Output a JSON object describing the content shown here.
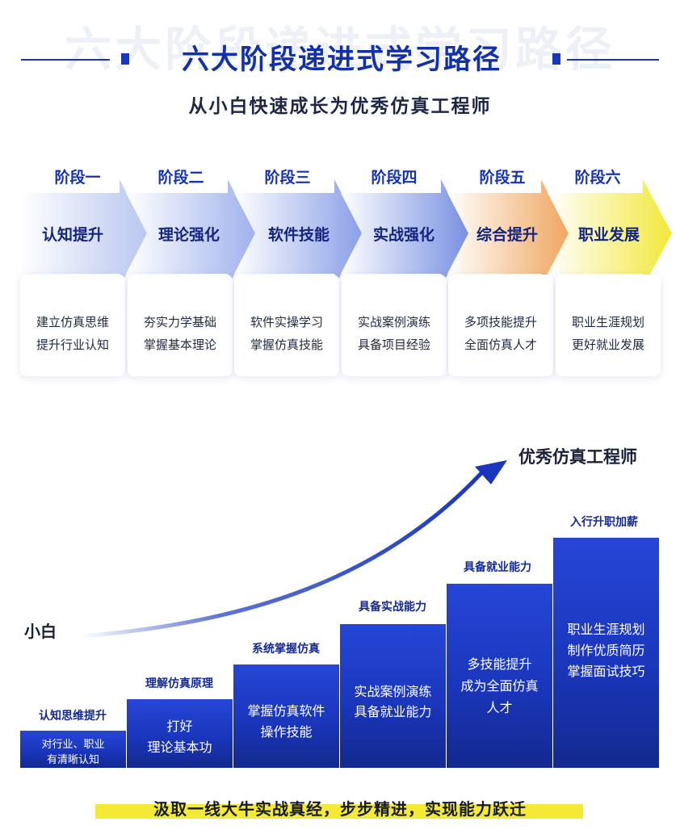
{
  "header": {
    "watermark": "六大阶段递进式学习路径",
    "title": "六大阶段递进式学习路径",
    "subtitle": "从小白快速成长为优秀仿真工程师",
    "accent_color": "#1837b8"
  },
  "stages": [
    {
      "label": "阶段一",
      "name": "认知提升",
      "lines": [
        "建立仿真思维",
        "提升行业认知"
      ]
    },
    {
      "label": "阶段二",
      "name": "理论强化",
      "lines": [
        "夯实力学基础",
        "掌握基本理论"
      ]
    },
    {
      "label": "阶段三",
      "name": "软件技能",
      "lines": [
        "软件实操学习",
        "掌握仿真技能"
      ]
    },
    {
      "label": "阶段四",
      "name": "实战强化",
      "lines": [
        "实战案例演练",
        "具备项目经验"
      ]
    },
    {
      "label": "阶段五",
      "name": "综合提升",
      "lines": [
        "多项技能提升",
        "全面仿真人才"
      ]
    },
    {
      "label": "阶段六",
      "name": "职业发展",
      "lines": [
        "职业生涯规划",
        "更好就业发展"
      ]
    }
  ],
  "growth": {
    "start_label": "小白",
    "end_label": "优秀仿真工程师",
    "steps": [
      {
        "heading": "认知思维提升",
        "lines": [
          "对行业、职业",
          "有清晰认知"
        ]
      },
      {
        "heading": "理解仿真原理",
        "lines": [
          "打好",
          "理论基本功"
        ]
      },
      {
        "heading": "系统掌握仿真",
        "lines": [
          "掌握仿真软件",
          "操作技能"
        ]
      },
      {
        "heading": "具备实战能力",
        "lines": [
          "实战案例演练",
          "具备就业能力"
        ]
      },
      {
        "heading": "具备就业能力",
        "lines": [
          "多技能提升",
          "成为全面仿真",
          "人才"
        ]
      },
      {
        "heading": "入行升职加薪",
        "lines": [
          "职业生涯规划",
          "制作优质简历",
          "掌握面试技巧"
        ]
      }
    ]
  },
  "footer": {
    "text": "汲取一线大牛实战真经，步步精进，实现能力跃迁",
    "highlight_color": "#f4ea35"
  }
}
